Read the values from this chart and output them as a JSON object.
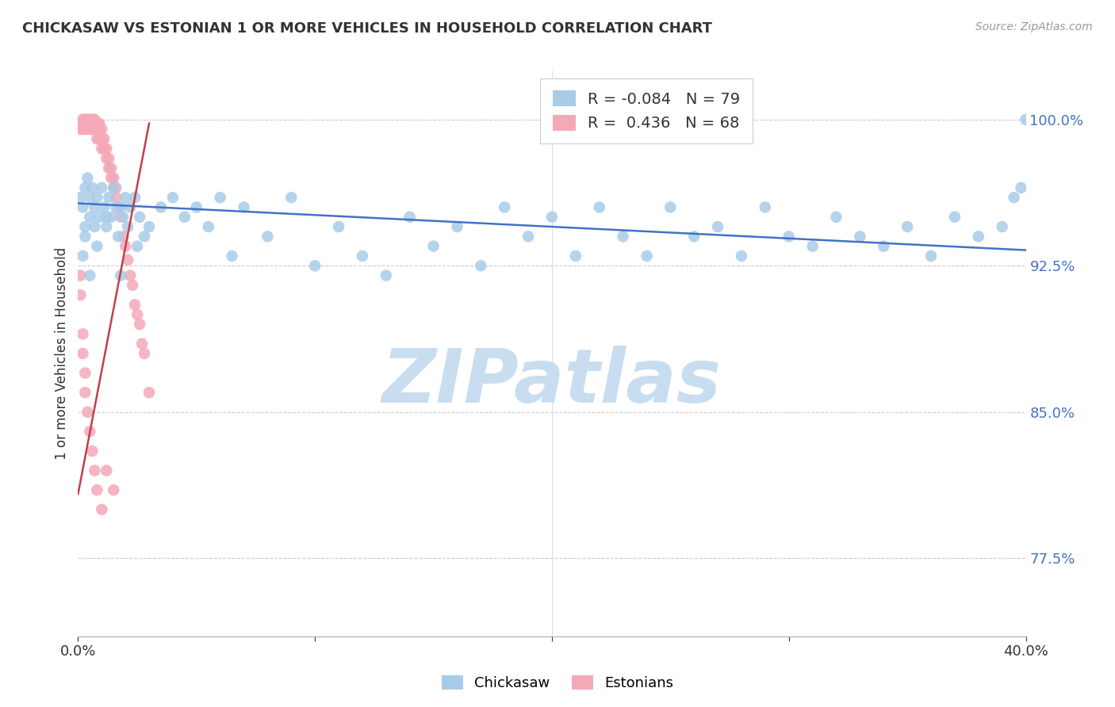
{
  "title": "CHICKASAW VS ESTONIAN 1 OR MORE VEHICLES IN HOUSEHOLD CORRELATION CHART",
  "source": "Source: ZipAtlas.com",
  "ylabel": "1 or more Vehicles in Household",
  "ytick_labels": [
    "77.5%",
    "85.0%",
    "92.5%",
    "100.0%"
  ],
  "ytick_values": [
    0.775,
    0.85,
    0.925,
    1.0
  ],
  "xlim": [
    0.0,
    0.4
  ],
  "ylim": [
    0.735,
    1.025
  ],
  "chickasaw_R": -0.084,
  "chickasaw_N": 79,
  "estonian_R": 0.436,
  "estonian_N": 68,
  "blue_color": "#a8cce8",
  "pink_color": "#f4a8b8",
  "blue_line_color": "#4472c4",
  "pink_line_color": "#c0404a",
  "watermark": "ZIPatlas",
  "watermark_color": "#c8ddf0",
  "blue_scatter_x": [
    0.001,
    0.002,
    0.003,
    0.003,
    0.004,
    0.005,
    0.005,
    0.006,
    0.007,
    0.007,
    0.008,
    0.009,
    0.01,
    0.011,
    0.012,
    0.013,
    0.014,
    0.015,
    0.016,
    0.017,
    0.018,
    0.019,
    0.02,
    0.021,
    0.022,
    0.024,
    0.026,
    0.028,
    0.03,
    0.035,
    0.04,
    0.045,
    0.05,
    0.055,
    0.06,
    0.065,
    0.07,
    0.08,
    0.09,
    0.1,
    0.11,
    0.12,
    0.13,
    0.14,
    0.15,
    0.16,
    0.17,
    0.18,
    0.19,
    0.2,
    0.21,
    0.22,
    0.23,
    0.24,
    0.25,
    0.26,
    0.27,
    0.28,
    0.29,
    0.3,
    0.31,
    0.32,
    0.33,
    0.34,
    0.35,
    0.36,
    0.37,
    0.38,
    0.39,
    0.395,
    0.398,
    0.4,
    0.002,
    0.003,
    0.005,
    0.008,
    0.012,
    0.018,
    0.025
  ],
  "blue_scatter_y": [
    0.96,
    0.955,
    0.965,
    0.945,
    0.97,
    0.96,
    0.95,
    0.965,
    0.955,
    0.945,
    0.96,
    0.95,
    0.965,
    0.955,
    0.945,
    0.96,
    0.95,
    0.965,
    0.955,
    0.94,
    0.955,
    0.95,
    0.96,
    0.945,
    0.955,
    0.96,
    0.95,
    0.94,
    0.945,
    0.955,
    0.96,
    0.95,
    0.955,
    0.945,
    0.96,
    0.93,
    0.955,
    0.94,
    0.96,
    0.925,
    0.945,
    0.93,
    0.92,
    0.95,
    0.935,
    0.945,
    0.925,
    0.955,
    0.94,
    0.95,
    0.93,
    0.955,
    0.94,
    0.93,
    0.955,
    0.94,
    0.945,
    0.93,
    0.955,
    0.94,
    0.935,
    0.95,
    0.94,
    0.935,
    0.945,
    0.93,
    0.95,
    0.94,
    0.945,
    0.96,
    0.965,
    1.0,
    0.93,
    0.94,
    0.92,
    0.935,
    0.95,
    0.92,
    0.935
  ],
  "pink_scatter_x": [
    0.001,
    0.001,
    0.002,
    0.002,
    0.002,
    0.003,
    0.003,
    0.003,
    0.004,
    0.004,
    0.004,
    0.005,
    0.005,
    0.005,
    0.006,
    0.006,
    0.006,
    0.007,
    0.007,
    0.007,
    0.008,
    0.008,
    0.008,
    0.009,
    0.009,
    0.009,
    0.01,
    0.01,
    0.01,
    0.011,
    0.011,
    0.012,
    0.012,
    0.013,
    0.013,
    0.014,
    0.014,
    0.015,
    0.015,
    0.016,
    0.016,
    0.017,
    0.018,
    0.019,
    0.02,
    0.021,
    0.022,
    0.023,
    0.024,
    0.025,
    0.026,
    0.027,
    0.028,
    0.03,
    0.001,
    0.001,
    0.002,
    0.002,
    0.003,
    0.003,
    0.004,
    0.005,
    0.006,
    0.007,
    0.008,
    0.01,
    0.012,
    0.015
  ],
  "pink_scatter_y": [
    0.995,
    0.998,
    0.995,
    0.998,
    1.0,
    0.998,
    0.995,
    1.0,
    0.998,
    0.995,
    1.0,
    0.998,
    0.995,
    1.0,
    0.998,
    0.995,
    1.0,
    0.998,
    0.995,
    1.0,
    0.995,
    0.99,
    0.998,
    0.995,
    0.99,
    0.998,
    0.99,
    0.985,
    0.995,
    0.985,
    0.99,
    0.98,
    0.985,
    0.975,
    0.98,
    0.97,
    0.975,
    0.965,
    0.97,
    0.96,
    0.965,
    0.955,
    0.95,
    0.94,
    0.935,
    0.928,
    0.92,
    0.915,
    0.905,
    0.9,
    0.895,
    0.885,
    0.88,
    0.86,
    0.92,
    0.91,
    0.89,
    0.88,
    0.87,
    0.86,
    0.85,
    0.84,
    0.83,
    0.82,
    0.81,
    0.8,
    0.82,
    0.81
  ],
  "blue_trend_x": [
    0.0,
    0.4
  ],
  "blue_trend_y": [
    0.957,
    0.933
  ],
  "pink_trend_x": [
    0.0,
    0.03
  ],
  "pink_trend_y": [
    0.808,
    0.998
  ]
}
